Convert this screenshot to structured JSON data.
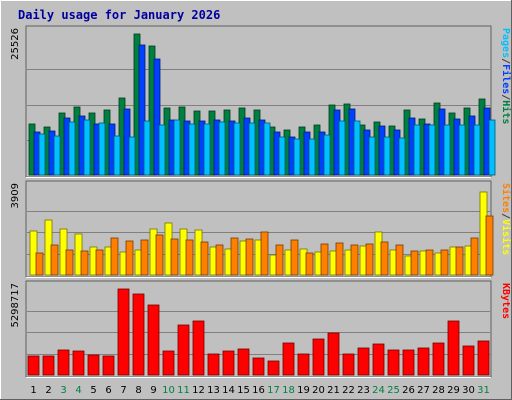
{
  "chart_data": {
    "type": "bar",
    "title": "Daily usage for January 2026",
    "categories": [
      "1",
      "2",
      "3",
      "4",
      "5",
      "6",
      "7",
      "8",
      "9",
      "10",
      "11",
      "12",
      "13",
      "14",
      "15",
      "16",
      "17",
      "18",
      "19",
      "20",
      "21",
      "22",
      "23",
      "24",
      "25",
      "26",
      "27",
      "28",
      "29",
      "30",
      "31"
    ],
    "weekend_days": [
      "3",
      "4",
      "10",
      "11",
      "17",
      "18",
      "24",
      "25",
      "31"
    ],
    "panels": [
      {
        "id": "hits",
        "max_label": "25526",
        "ymax": 25526,
        "axis_labels": [
          {
            "text": "Pages",
            "color": "#00c0ff"
          },
          {
            "text": "/",
            "color": "#404040"
          },
          {
            "text": "Files",
            "color": "#0040ff"
          },
          {
            "text": "/",
            "color": "#404040"
          },
          {
            "text": "Hits",
            "color": "#008040"
          }
        ],
        "series": [
          {
            "name": "Hits",
            "color": "#008040",
            "values": [
              9300,
              8600,
              11200,
              12300,
              11200,
              11700,
              14000,
              25500,
              23400,
              12200,
              12400,
              11500,
              11500,
              11800,
              12200,
              11700,
              8600,
              8100,
              8600,
              9000,
              12700,
              12900,
              9000,
              9600,
              8800,
              11800,
              10200,
              13000,
              11300,
              12200,
              13700
            ]
          },
          {
            "name": "Files",
            "color": "#0040ff",
            "values": [
              7700,
              8000,
              10400,
              10700,
              9300,
              9200,
              11900,
              23500,
              21000,
              9900,
              9800,
              9700,
              9900,
              9800,
              10400,
              10000,
              7700,
              6900,
              7800,
              7800,
              11800,
              12000,
              8200,
              8900,
              8100,
              10300,
              9300,
              12000,
              10100,
              10600,
              12100
            ]
          },
          {
            "name": "Pages",
            "color": "#00c0ff",
            "values": [
              7500,
              7000,
              9600,
              10000,
              9400,
              7100,
              6900,
              9800,
              9000,
              9900,
              9300,
              9200,
              9600,
              9500,
              9500,
              9400,
              6900,
              6600,
              6600,
              7300,
              9700,
              9800,
              6900,
              6800,
              6700,
              9100,
              9000,
              9000,
              9100,
              9100,
              10000
            ]
          }
        ]
      },
      {
        "id": "visits",
        "max_label": "3909",
        "ymax": 3909,
        "axis_labels": [
          {
            "text": "Sites",
            "color": "#ff8000"
          },
          {
            "text": "/",
            "color": "#404040"
          },
          {
            "text": "Visits",
            "color": "#ffff00"
          }
        ],
        "series": [
          {
            "name": "Visits",
            "color": "#ffff00",
            "values": [
              2000,
              2500,
              2100,
              1850,
              1250,
              1250,
              1050,
              1150,
              2100,
              2350,
              2100,
              2050,
              1250,
              1200,
              1550,
              1600,
              900,
              1150,
              1200,
              1050,
              1100,
              1150,
              1300,
              1950,
              1150,
              850,
              1100,
              1000,
              1250,
              1300,
              3750
            ]
          },
          {
            "name": "Sites",
            "color": "#ff8000",
            "values": [
              1000,
              1350,
              1150,
              1100,
              1150,
              1700,
              1550,
              1600,
              1800,
              1650,
              1600,
              1500,
              1350,
              1700,
              1650,
              1950,
              1350,
              1600,
              1000,
              1400,
              1450,
              1350,
              1400,
              1500,
              1350,
              1100,
              1150,
              1150,
              1250,
              1700,
              2700
            ]
          }
        ]
      },
      {
        "id": "kbytes",
        "max_label": "5298717",
        "ymax": 5298717,
        "axis_labels": [
          {
            "text": "KBytes",
            "color": "#ff0000"
          }
        ],
        "series": [
          {
            "name": "KBytes",
            "color": "#ff0000",
            "values": [
              1200000,
              1150000,
              1570000,
              1450000,
              1250000,
              1200000,
              5300000,
              4990000,
              4340000,
              1490000,
              3070000,
              3310000,
              1290000,
              1470000,
              1590000,
              1070000,
              860000,
              1990000,
              1290000,
              2210000,
              2600000,
              1290000,
              1690000,
              1910000,
              1530000,
              1550000,
              1640000,
              1950000,
              3310000,
              1800000,
              2070000
            ]
          }
        ]
      }
    ]
  }
}
